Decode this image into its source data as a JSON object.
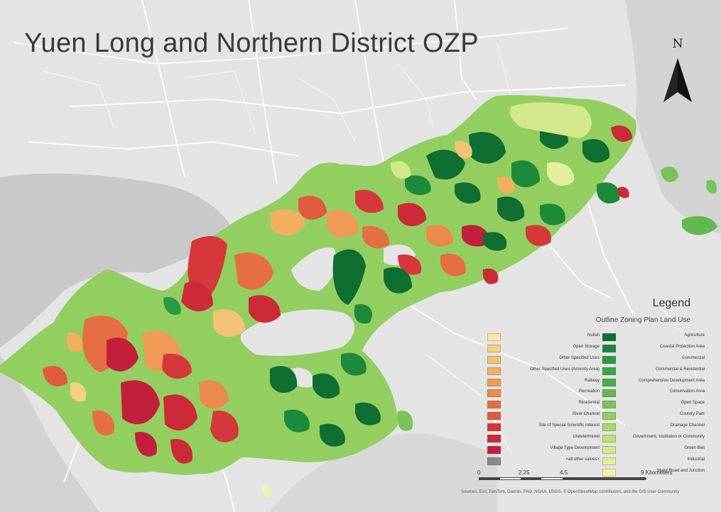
{
  "title": "Yuen Long and Northern District OZP",
  "north_arrow": {
    "label": "N"
  },
  "legend": {
    "title": "Legend",
    "subtitle": "Outline Zoning Plan Land Use",
    "left_items": [
      {
        "label": "Nullah",
        "color": "#f7e9a6"
      },
      {
        "label": "Open Storage",
        "color": "#f4d17e"
      },
      {
        "label": "Other Specified Uses",
        "color": "#f2c277"
      },
      {
        "label": "Other Specified Uses (Amenity Area)",
        "color": "#f0b060"
      },
      {
        "label": "Railway",
        "color": "#ee9c55"
      },
      {
        "label": "Recreation",
        "color": "#ea8a4d"
      },
      {
        "label": "Residential",
        "color": "#e56f42"
      },
      {
        "label": "River Channel",
        "color": "#e05a3c"
      },
      {
        "label": "Site of Special Scientific Interest",
        "color": "#d6373a"
      },
      {
        "label": "Undetermined",
        "color": "#cc2a36"
      },
      {
        "label": "Village Type Development",
        "color": "#c31f3a"
      },
      {
        "label": "<all other values>",
        "color": "#8a8a8a"
      }
    ],
    "right_items": [
      {
        "label": "Agriculture",
        "color": "#0f6e30"
      },
      {
        "label": "Coastal Protection Area",
        "color": "#1c8a3a"
      },
      {
        "label": "Commercial",
        "color": "#2b9a42"
      },
      {
        "label": "Commercial & Residential",
        "color": "#39a54a"
      },
      {
        "label": "Comprehensive Development Area",
        "color": "#4dad4b"
      },
      {
        "label": "Conservation Area",
        "color": "#61b84f"
      },
      {
        "label": "Open Space",
        "color": "#78c45a"
      },
      {
        "label": "Country Park",
        "color": "#93ce61"
      },
      {
        "label": "Drainage Channel",
        "color": "#a9d86b"
      },
      {
        "label": "Government, Institution or Community",
        "color": "#bfe07a"
      },
      {
        "label": "Green Belt",
        "color": "#d3e88a"
      },
      {
        "label": "Industrial",
        "color": "#e3ef9d"
      },
      {
        "label": "Major Road and Junction",
        "color": "#f1f3ad"
      }
    ]
  },
  "scale_bar": {
    "ticks": [
      "0",
      "2.25",
      "4.5",
      "9 Kilometers"
    ]
  },
  "attribution": "Sources: Esri, TomTom, Garmin, FAO, NOAA, USGS, © OpenStreetMap contributors, and the GIS User Community",
  "colors": {
    "basemap_land": "#e4e4e4",
    "basemap_water": "#c8c8c8",
    "roads": "#ffffff",
    "text_dark": "#3a3a3a"
  }
}
